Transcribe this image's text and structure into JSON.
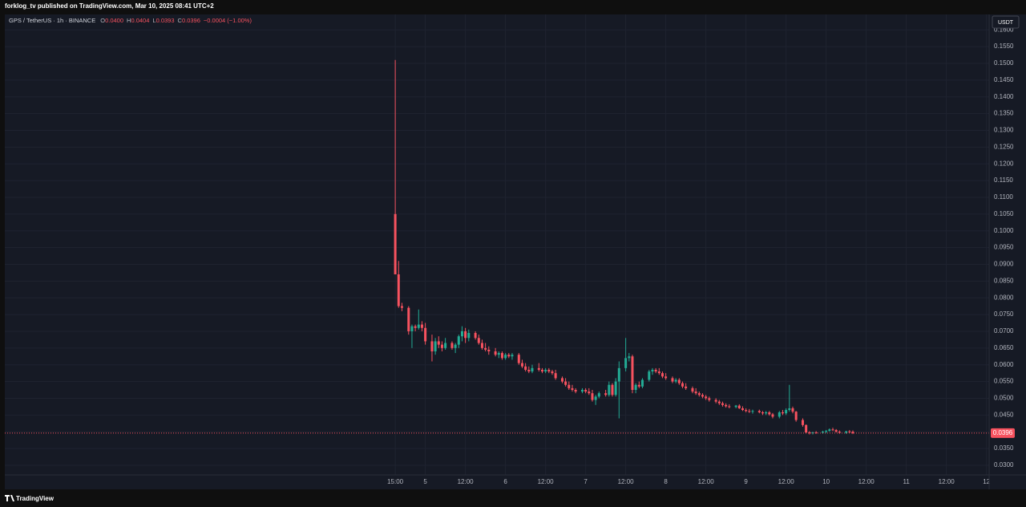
{
  "published": "forklog_tv published on TradingView.com, Mar 10, 2025 08:41 UTC+2",
  "footer": "TradingView",
  "chart_data": {
    "type": "candlestick",
    "symbol": "GPS / TetherUS · 1h · BINANCE",
    "legend": [
      {
        "key": "O",
        "text": "0.0400"
      },
      {
        "key": "H",
        "text": "0.0404"
      },
      {
        "key": "L",
        "text": "0.0393"
      },
      {
        "key": "C",
        "text": "0.0396"
      }
    ],
    "change": "−0.0004 (−1.00%)",
    "currency": "USDT",
    "up_color": "#22ab94",
    "down_color": "#f7525f",
    "grid": true,
    "last_price": {
      "value": 0.0396,
      "label": "0.0396"
    },
    "xlim": [
      -116.9,
      177.8
    ],
    "ylim": [
      0.0228,
      0.1646
    ],
    "xticks": [
      {
        "value": 0,
        "label": "15:00"
      },
      {
        "value": 9,
        "label": "5"
      },
      {
        "value": 21,
        "label": "12:00"
      },
      {
        "value": 33,
        "label": "6"
      },
      {
        "value": 45,
        "label": "12:00"
      },
      {
        "value": 57,
        "label": "7"
      },
      {
        "value": 69,
        "label": "12:00"
      },
      {
        "value": 81,
        "label": "8"
      },
      {
        "value": 93,
        "label": "12:00"
      },
      {
        "value": 105,
        "label": "9"
      },
      {
        "value": 117,
        "label": "12:00"
      },
      {
        "value": 129,
        "label": "10"
      },
      {
        "value": 141,
        "label": "12:00"
      },
      {
        "value": 153,
        "label": "11"
      },
      {
        "value": 165,
        "label": "12:00"
      },
      {
        "value": 177,
        "label": "12"
      }
    ],
    "yticks": [
      {
        "value": 0.03,
        "label": "0.0300"
      },
      {
        "value": 0.035,
        "label": "0.0350"
      },
      {
        "value": 0.04,
        "label": "0.0400"
      },
      {
        "value": 0.045,
        "label": "0.0450"
      },
      {
        "value": 0.05,
        "label": "0.0500"
      },
      {
        "value": 0.055,
        "label": "0.0550"
      },
      {
        "value": 0.06,
        "label": "0.0600"
      },
      {
        "value": 0.065,
        "label": "0.0650"
      },
      {
        "value": 0.07,
        "label": "0.0700"
      },
      {
        "value": 0.075,
        "label": "0.0750"
      },
      {
        "value": 0.08,
        "label": "0.0800"
      },
      {
        "value": 0.085,
        "label": "0.0850"
      },
      {
        "value": 0.09,
        "label": "0.0900"
      },
      {
        "value": 0.095,
        "label": "0.0950"
      },
      {
        "value": 0.1,
        "label": "0.1000"
      },
      {
        "value": 0.105,
        "label": "0.1050"
      },
      {
        "value": 0.11,
        "label": "0.1100"
      },
      {
        "value": 0.115,
        "label": "0.1150"
      },
      {
        "value": 0.12,
        "label": "0.1200"
      },
      {
        "value": 0.125,
        "label": "0.1250"
      },
      {
        "value": 0.13,
        "label": "0.1300"
      },
      {
        "value": 0.135,
        "label": "0.1350"
      },
      {
        "value": 0.14,
        "label": "0.1400"
      },
      {
        "value": 0.145,
        "label": "0.1450"
      },
      {
        "value": 0.15,
        "label": "0.1500"
      },
      {
        "value": 0.155,
        "label": "0.1550"
      },
      {
        "value": 0.16,
        "label": "0.1600"
      }
    ],
    "x": [
      0,
      1,
      2,
      4,
      5,
      6,
      7,
      8,
      9,
      11,
      12,
      13,
      14,
      15,
      17,
      18,
      19,
      20,
      21,
      22,
      24,
      25,
      26,
      27,
      28,
      30,
      31,
      32,
      33,
      34,
      35,
      37,
      38,
      39,
      40,
      41,
      43,
      44,
      45,
      46,
      47,
      48,
      50,
      51,
      52,
      53,
      54,
      56,
      57,
      58,
      59,
      60,
      61,
      63,
      64,
      65,
      66,
      67,
      69,
      70,
      71,
      72,
      73,
      74,
      76,
      77,
      78,
      79,
      80,
      81,
      83,
      84,
      85,
      86,
      87,
      89,
      90,
      91,
      92,
      93,
      94,
      96,
      97,
      98,
      99,
      100,
      102,
      103,
      104,
      105,
      106,
      107,
      109,
      110,
      111,
      112,
      113,
      115,
      116,
      117,
      118,
      119,
      120,
      122,
      123,
      124,
      125,
      126,
      128,
      129,
      130,
      131,
      132,
      133,
      135,
      136,
      137
    ],
    "ohlc": [
      [
        0.105,
        0.151,
        0.087,
        0.087
      ],
      [
        0.087,
        0.091,
        0.077,
        0.0775
      ],
      [
        0.0775,
        0.0785,
        0.076,
        0.077
      ],
      [
        0.077,
        0.0775,
        0.069,
        0.07
      ],
      [
        0.07,
        0.072,
        0.065,
        0.0715
      ],
      [
        0.0715,
        0.072,
        0.07,
        0.071
      ],
      [
        0.071,
        0.0765,
        0.0705,
        0.072
      ],
      [
        0.072,
        0.073,
        0.07,
        0.071
      ],
      [
        0.071,
        0.0725,
        0.066,
        0.067
      ],
      [
        0.067,
        0.069,
        0.061,
        0.064
      ],
      [
        0.064,
        0.068,
        0.063,
        0.067
      ],
      [
        0.067,
        0.0685,
        0.065,
        0.066
      ],
      [
        0.066,
        0.067,
        0.064,
        0.065
      ],
      [
        0.065,
        0.068,
        0.0645,
        0.0665
      ],
      [
        0.0665,
        0.067,
        0.0645,
        0.065
      ],
      [
        0.065,
        0.0665,
        0.0635,
        0.066
      ],
      [
        0.066,
        0.069,
        0.065,
        0.0685
      ],
      [
        0.0685,
        0.0715,
        0.067,
        0.07
      ],
      [
        0.07,
        0.071,
        0.0665,
        0.068
      ],
      [
        0.068,
        0.0705,
        0.067,
        0.0695
      ],
      [
        0.0695,
        0.07,
        0.0675,
        0.068
      ],
      [
        0.068,
        0.069,
        0.066,
        0.0665
      ],
      [
        0.0665,
        0.0675,
        0.0645,
        0.065
      ],
      [
        0.065,
        0.0665,
        0.064,
        0.0645
      ],
      [
        0.0645,
        0.0655,
        0.063,
        0.064
      ],
      [
        0.064,
        0.065,
        0.0625,
        0.063
      ],
      [
        0.063,
        0.064,
        0.062,
        0.0635
      ],
      [
        0.0635,
        0.064,
        0.0615,
        0.062
      ],
      [
        0.062,
        0.0635,
        0.0615,
        0.063
      ],
      [
        0.063,
        0.0635,
        0.062,
        0.0625
      ],
      [
        0.0625,
        0.0635,
        0.0615,
        0.063
      ],
      [
        0.063,
        0.0635,
        0.06,
        0.0605
      ],
      [
        0.0605,
        0.0615,
        0.059,
        0.0595
      ],
      [
        0.0595,
        0.0605,
        0.058,
        0.0585
      ],
      [
        0.0585,
        0.0595,
        0.0575,
        0.058
      ],
      [
        0.058,
        0.06,
        0.0575,
        0.059
      ],
      [
        0.059,
        0.0605,
        0.058,
        0.0585
      ],
      [
        0.0585,
        0.059,
        0.0575,
        0.058
      ],
      [
        0.058,
        0.059,
        0.0575,
        0.0585
      ],
      [
        0.0585,
        0.059,
        0.0575,
        0.058
      ],
      [
        0.058,
        0.0585,
        0.057,
        0.0575
      ],
      [
        0.0575,
        0.0585,
        0.0555,
        0.056
      ],
      [
        0.056,
        0.0565,
        0.0545,
        0.055
      ],
      [
        0.055,
        0.056,
        0.0535,
        0.054
      ],
      [
        0.054,
        0.055,
        0.0525,
        0.053
      ],
      [
        0.053,
        0.054,
        0.052,
        0.0525
      ],
      [
        0.0525,
        0.053,
        0.0515,
        0.052
      ],
      [
        0.052,
        0.053,
        0.0515,
        0.0525
      ],
      [
        0.0525,
        0.053,
        0.0515,
        0.052
      ],
      [
        0.052,
        0.053,
        0.051,
        0.0515
      ],
      [
        0.0515,
        0.0525,
        0.049,
        0.0495
      ],
      [
        0.0495,
        0.051,
        0.048,
        0.0505
      ],
      [
        0.0505,
        0.052,
        0.05,
        0.0515
      ],
      [
        0.0515,
        0.0525,
        0.0505,
        0.051
      ],
      [
        0.051,
        0.055,
        0.0505,
        0.054
      ],
      [
        0.054,
        0.0545,
        0.0505,
        0.051
      ],
      [
        0.051,
        0.056,
        0.0505,
        0.055
      ],
      [
        0.055,
        0.061,
        0.044,
        0.059
      ],
      [
        0.059,
        0.068,
        0.058,
        0.062
      ],
      [
        0.062,
        0.0635,
        0.061,
        0.0625
      ],
      [
        0.0625,
        0.063,
        0.0515,
        0.0525
      ],
      [
        0.0525,
        0.0545,
        0.0515,
        0.054
      ],
      [
        0.054,
        0.055,
        0.053,
        0.0535
      ],
      [
        0.0535,
        0.056,
        0.053,
        0.0555
      ],
      [
        0.0555,
        0.0585,
        0.055,
        0.058
      ],
      [
        0.058,
        0.059,
        0.057,
        0.0585
      ],
      [
        0.0585,
        0.059,
        0.0575,
        0.058
      ],
      [
        0.058,
        0.059,
        0.057,
        0.0575
      ],
      [
        0.0575,
        0.058,
        0.056,
        0.0565
      ],
      [
        0.0565,
        0.0575,
        0.0555,
        0.056
      ],
      [
        0.056,
        0.0565,
        0.0545,
        0.055
      ],
      [
        0.055,
        0.056,
        0.0545,
        0.0555
      ],
      [
        0.0555,
        0.056,
        0.054,
        0.0545
      ],
      [
        0.0545,
        0.055,
        0.053,
        0.0535
      ],
      [
        0.0535,
        0.0545,
        0.0525,
        0.053
      ],
      [
        0.053,
        0.0535,
        0.0515,
        0.052
      ],
      [
        0.052,
        0.053,
        0.051,
        0.0515
      ],
      [
        0.0515,
        0.052,
        0.0505,
        0.051
      ],
      [
        0.051,
        0.0515,
        0.05,
        0.0505
      ],
      [
        0.0505,
        0.051,
        0.0495,
        0.05
      ],
      [
        0.05,
        0.0505,
        0.049,
        0.0495
      ],
      [
        0.0495,
        0.05,
        0.0485,
        0.049
      ],
      [
        0.049,
        0.0495,
        0.048,
        0.0485
      ],
      [
        0.0485,
        0.049,
        0.0475,
        0.048
      ],
      [
        0.048,
        0.0485,
        0.0472,
        0.0476
      ],
      [
        0.0476,
        0.0482,
        0.047,
        0.0474
      ],
      [
        0.0474,
        0.048,
        0.047,
        0.0478
      ],
      [
        0.0478,
        0.0482,
        0.0468,
        0.047
      ],
      [
        0.047,
        0.0476,
        0.0462,
        0.0465
      ],
      [
        0.0465,
        0.047,
        0.0458,
        0.0462
      ],
      [
        0.0462,
        0.0468,
        0.0456,
        0.046
      ],
      [
        0.046,
        0.0466,
        0.0454,
        0.0462
      ],
      [
        0.0462,
        0.0466,
        0.0455,
        0.0458
      ],
      [
        0.0458,
        0.0462,
        0.045,
        0.0455
      ],
      [
        0.0455,
        0.0462,
        0.045,
        0.0458
      ],
      [
        0.0458,
        0.0462,
        0.0448,
        0.0452
      ],
      [
        0.0452,
        0.0456,
        0.044,
        0.0445
      ],
      [
        0.0445,
        0.0462,
        0.044,
        0.0458
      ],
      [
        0.0458,
        0.0465,
        0.045,
        0.0455
      ],
      [
        0.0455,
        0.047,
        0.045,
        0.0465
      ],
      [
        0.0465,
        0.054,
        0.046,
        0.047
      ],
      [
        0.047,
        0.0475,
        0.0455,
        0.046
      ],
      [
        0.046,
        0.0462,
        0.043,
        0.0435
      ],
      [
        0.0435,
        0.044,
        0.0415,
        0.042
      ],
      [
        0.042,
        0.0422,
        0.0395,
        0.0398
      ],
      [
        0.0398,
        0.0402,
        0.0392,
        0.0396
      ],
      [
        0.0396,
        0.04,
        0.0392,
        0.0398
      ],
      [
        0.0398,
        0.0402,
        0.0394,
        0.0397
      ],
      [
        0.0397,
        0.0403,
        0.0394,
        0.04
      ],
      [
        0.04,
        0.0405,
        0.0396,
        0.0403
      ],
      [
        0.0403,
        0.041,
        0.04,
        0.0407
      ],
      [
        0.0407,
        0.0412,
        0.0402,
        0.0405
      ],
      [
        0.0405,
        0.0408,
        0.0398,
        0.04
      ],
      [
        0.04,
        0.0404,
        0.0394,
        0.0397
      ],
      [
        0.0397,
        0.0403,
        0.0394,
        0.0401
      ],
      [
        0.0401,
        0.0405,
        0.0396,
        0.0399
      ],
      [
        0.04,
        0.0404,
        0.0393,
        0.0396
      ]
    ]
  }
}
